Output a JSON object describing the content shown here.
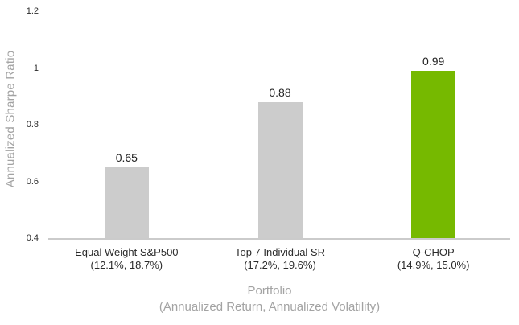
{
  "chart_data": {
    "type": "bar",
    "title": "",
    "ylabel": "Annualized Sharpe Ratio",
    "xlabel": "Portfolio",
    "xlabel_sub": "(Annualized Return, Annualized Volatility)",
    "ylim": [
      0.4,
      1.2
    ],
    "yticks": [
      0.4,
      0.6,
      0.8,
      1,
      1.2
    ],
    "ytick_labels": [
      "0.4",
      "0.6",
      "0.8",
      "1",
      "1.2"
    ],
    "categories": [
      "Equal Weight S&P500",
      "Top 7 Individual SR",
      "Q-CHOP"
    ],
    "category_sublabels": [
      "(12.1%, 18.7%)",
      "(17.2%, 19.6%)",
      "(14.9%, 15.0%)"
    ],
    "values": [
      0.65,
      0.88,
      0.99
    ],
    "value_labels": [
      "0.65",
      "0.88",
      "0.99"
    ],
    "bar_colors": [
      "#cccccc",
      "#cccccc",
      "#76b900"
    ],
    "grid": false,
    "legend": false
  },
  "colors": {
    "background": "#ffffff",
    "axis_line": "#cbcbcb",
    "bar_gray": "#cccccc",
    "accent_green": "#76b900",
    "muted_text": "#a3a3a3",
    "dark_text": "#2b2b2b"
  }
}
